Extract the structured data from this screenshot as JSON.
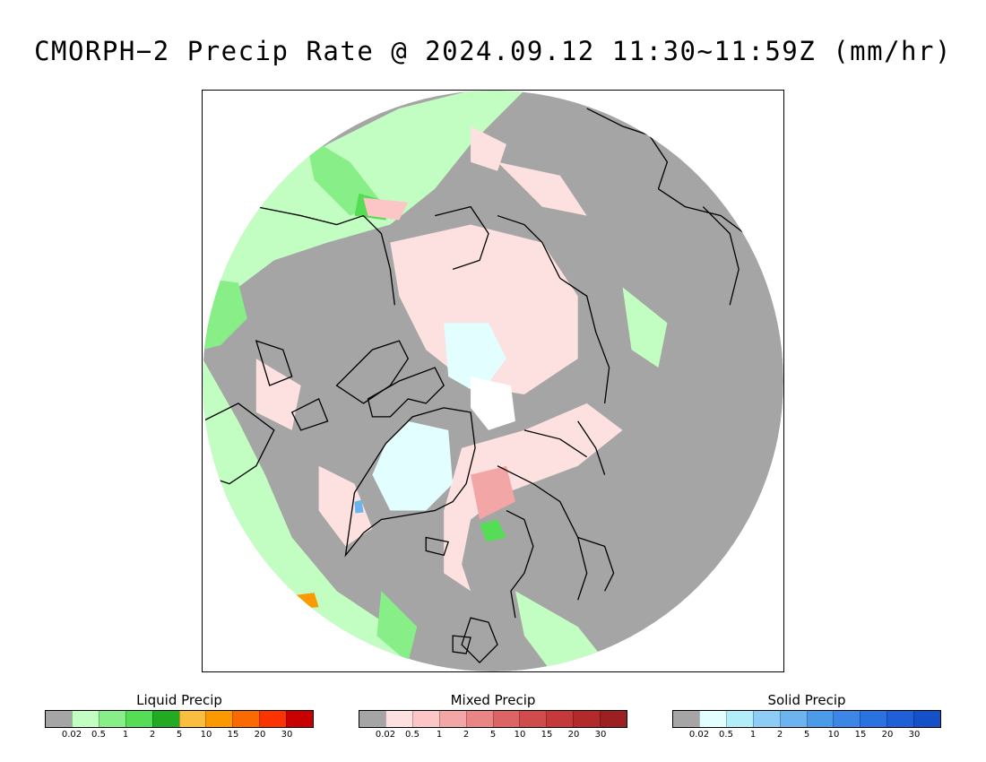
{
  "title": "CMORPH−2 Precip Rate @ 2024.09.12 11:30~11:59Z (mm/hr)",
  "map": {
    "projection": "north polar stereographic",
    "colors": {
      "background": "#ffffff",
      "no_precip": "#a5a5a5",
      "coastline": "#000000"
    }
  },
  "legends": [
    {
      "title": "Liquid Precip",
      "colors": [
        "#a5a5a5",
        "#c2fdc2",
        "#88ee88",
        "#55dd55",
        "#22aa22",
        "#fbbd3e",
        "#fb9a00",
        "#fb6a00",
        "#fb3300",
        "#c80000"
      ],
      "ticks": [
        "0.02",
        "0.5",
        "1",
        "2",
        "5",
        "10",
        "15",
        "20",
        "30"
      ]
    },
    {
      "title": "Mixed Precip",
      "colors": [
        "#a5a5a5",
        "#fde0e0",
        "#fcc6c6",
        "#f3a6a6",
        "#ea8585",
        "#dd6464",
        "#d04b4b",
        "#c43a3a",
        "#b22a2a",
        "#9c2020"
      ],
      "ticks": [
        "0.02",
        "0.5",
        "1",
        "2",
        "5",
        "10",
        "15",
        "20",
        "30"
      ]
    },
    {
      "title": "Solid Precip",
      "colors": [
        "#a5a5a5",
        "#e2fefe",
        "#b2eefa",
        "#8cccf5",
        "#6cb4f0",
        "#4c9be8",
        "#3c87e6",
        "#2a72e0",
        "#1f60d8",
        "#1450c8"
      ],
      "ticks": [
        "0.02",
        "0.5",
        "1",
        "2",
        "5",
        "10",
        "15",
        "20",
        "30"
      ]
    }
  ]
}
